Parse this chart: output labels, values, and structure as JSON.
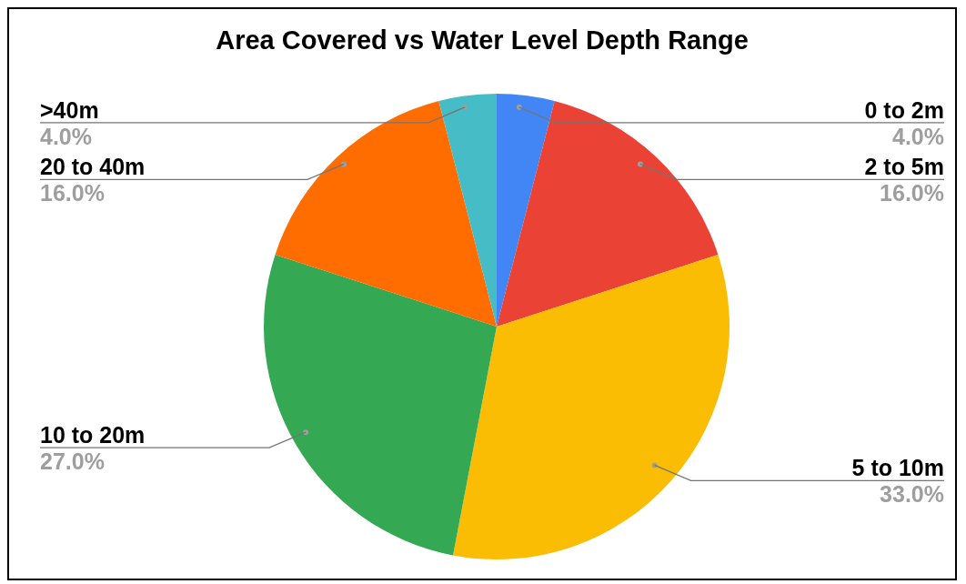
{
  "chart_data": {
    "type": "pie",
    "title": "Area Covered vs Water Level Depth Range",
    "categories": [
      "0 to 2m",
      "2 to 5m",
      "5 to 10m",
      "10 to 20m",
      "20 to 40m",
      ">40m"
    ],
    "values": [
      4,
      16,
      33,
      27,
      16,
      4
    ],
    "value_labels": [
      "4.0%",
      "16.0%",
      "33.0%",
      "27.0%",
      "16.0%",
      "4.0%"
    ],
    "colors": [
      "#4285f4",
      "#ea4335",
      "#fbbc04",
      "#34a853",
      "#ff6d01",
      "#46bdc6"
    ]
  }
}
